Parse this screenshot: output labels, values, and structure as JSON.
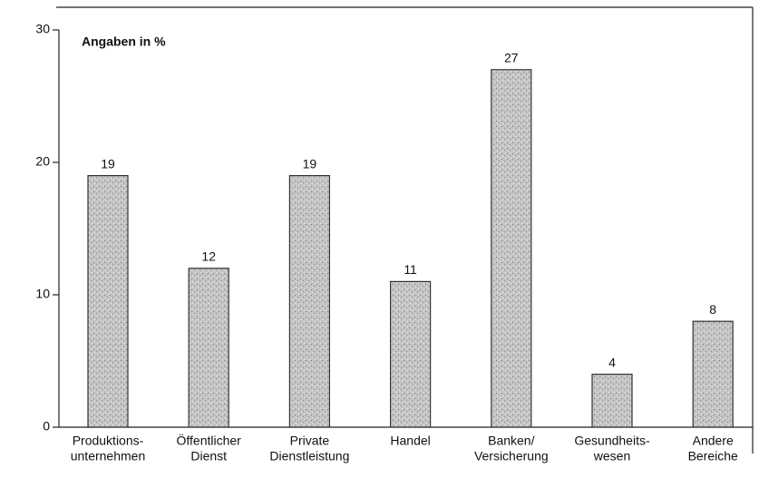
{
  "chart_data": {
    "type": "bar",
    "title": "Angaben in %",
    "categories": [
      [
        "Produktions-",
        "unternehmen"
      ],
      [
        "Öffentlicher",
        "Dienst"
      ],
      [
        "Private",
        "Dienstleistung"
      ],
      [
        "Handel"
      ],
      [
        "Banken/",
        "Versicherung"
      ],
      [
        "Gesundheits-",
        "wesen"
      ],
      [
        "Andere",
        "Bereiche"
      ]
    ],
    "values": [
      19,
      12,
      19,
      11,
      27,
      4,
      8
    ],
    "color": "#b4b4b4",
    "ylim": [
      0,
      30
    ],
    "yticks": [
      0,
      10,
      20,
      30
    ],
    "grid": false
  }
}
